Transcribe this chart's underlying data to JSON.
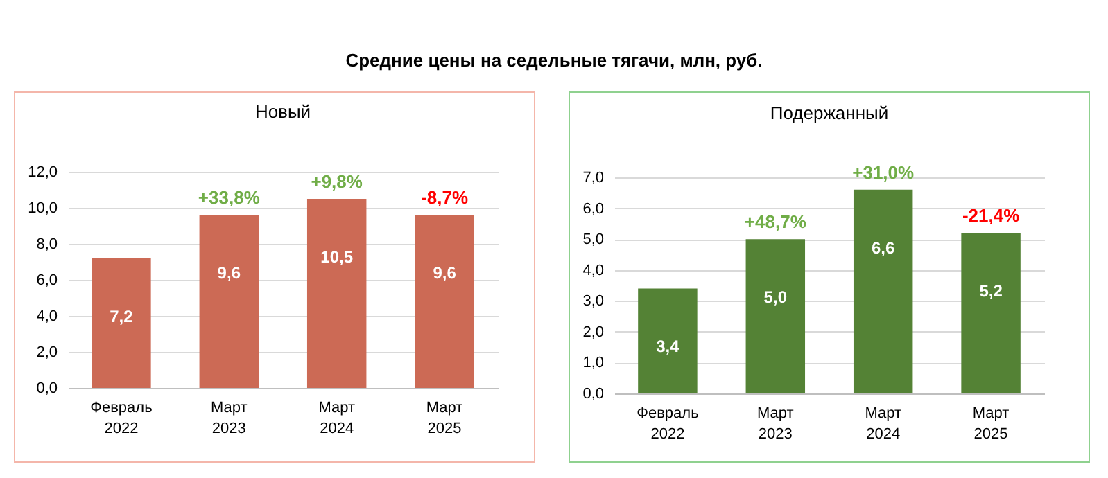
{
  "chart_data": [
    {
      "type": "bar",
      "title": "Средние цены на  седельные тягачи, млн, руб.",
      "subtitle": "Новый",
      "categories": [
        "Февраль 2022",
        "Март 2023",
        "Март 2024",
        "Март 2025"
      ],
      "series": [
        {
          "color": "#cc6a55",
          "values": [
            7.2,
            9.6,
            10.5,
            9.6
          ]
        }
      ],
      "value_labels": [
        "7,2",
        "9,6",
        "10,5",
        "9,6"
      ],
      "annotations": [
        {
          "text": "+33,8%",
          "x": "Март 2023",
          "y": 9.6
        },
        {
          "text": "+9,8%",
          "x": "Март 2024",
          "y": 10.5
        },
        {
          "text": "-8,7%",
          "x": "Март 2025",
          "y": 9.6
        }
      ],
      "ylim": [
        0,
        12
      ],
      "yticks": [
        {
          "value": 0,
          "label": "0,0"
        },
        {
          "value": 2,
          "label": "2,0"
        },
        {
          "value": 4,
          "label": "4,0"
        },
        {
          "value": 6,
          "label": "6,0"
        },
        {
          "value": 8,
          "label": "8,0"
        },
        {
          "value": 10,
          "label": "10,0"
        },
        {
          "value": 12,
          "label": "12,0"
        }
      ],
      "grid": "y",
      "legend": false
    },
    {
      "type": "bar",
      "subtitle": "Подержанный",
      "categories": [
        "Февраль 2022",
        "Март 2023",
        "Март 2024",
        "Март 2025"
      ],
      "series": [
        {
          "color": "#548235",
          "values": [
            3.4,
            5.0,
            6.6,
            5.2
          ]
        }
      ],
      "value_labels": [
        "3,4",
        "5,0",
        "6,6",
        "5,2"
      ],
      "annotations": [
        {
          "text": "+48,7%",
          "x": "Март 2023",
          "y": 5.0
        },
        {
          "text": "+31,0%",
          "x": "Март 2024",
          "y": 6.6
        },
        {
          "text": "-21,4%",
          "x": "Март 2025",
          "y": 5.2
        }
      ],
      "ylim": [
        0,
        7
      ],
      "yticks": [
        {
          "value": 0,
          "label": "0,0"
        },
        {
          "value": 1,
          "label": "1,0"
        },
        {
          "value": 2,
          "label": "2,0"
        },
        {
          "value": 3,
          "label": "3,0"
        },
        {
          "value": 4,
          "label": "4,0"
        },
        {
          "value": 5,
          "label": "5,0"
        },
        {
          "value": 6,
          "label": "6,0"
        },
        {
          "value": 7,
          "label": "7,0"
        }
      ],
      "grid": "y",
      "legend": false
    }
  ]
}
